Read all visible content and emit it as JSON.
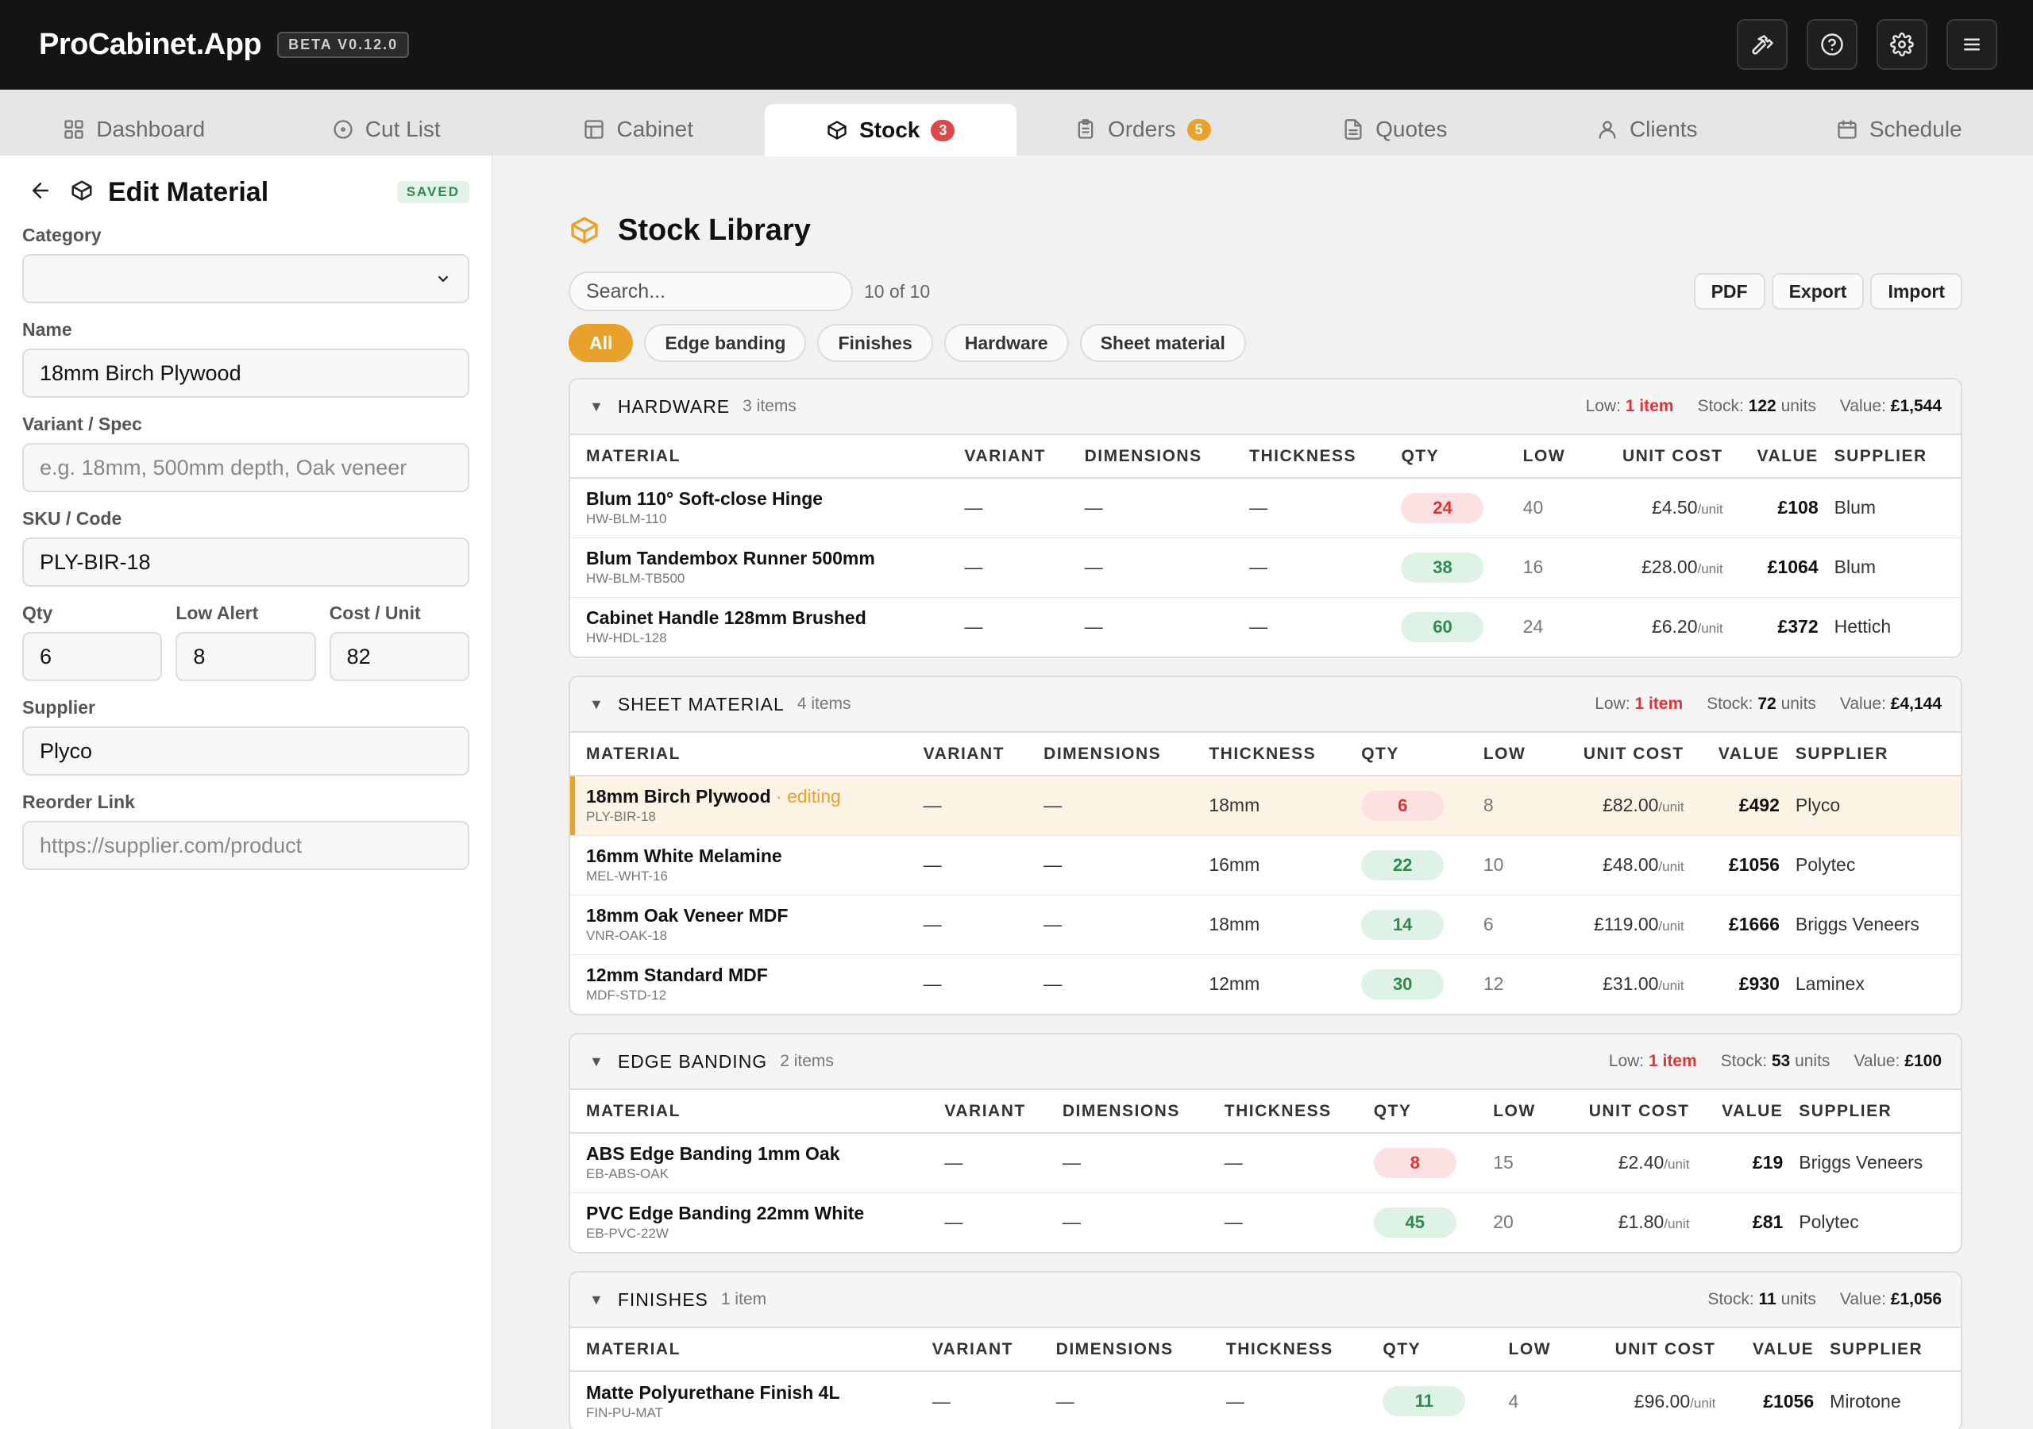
{
  "app": {
    "title": "ProCabinet.App",
    "version": "BETA V0.12.0"
  },
  "top_icons": [
    "hammer-icon",
    "help-icon",
    "settings-icon",
    "menu-icon"
  ],
  "tabs": [
    {
      "label": "Dashboard",
      "icon": "grid-icon"
    },
    {
      "label": "Cut List",
      "icon": "target-icon"
    },
    {
      "label": "Cabinet",
      "icon": "layout-icon"
    },
    {
      "label": "Stock",
      "icon": "box-icon",
      "badge": "3",
      "active": true
    },
    {
      "label": "Orders",
      "icon": "clipboard-icon",
      "badge": "5"
    },
    {
      "label": "Quotes",
      "icon": "document-icon"
    },
    {
      "label": "Clients",
      "icon": "user-icon"
    },
    {
      "label": "Schedule",
      "icon": "calendar-icon"
    }
  ],
  "editor": {
    "title": "Edit Material",
    "status": "SAVED",
    "category_label": "Category",
    "category_value": "",
    "name_label": "Name",
    "name_value": "18mm Birch Plywood",
    "variant_label": "Variant / Spec",
    "variant_placeholder": "e.g. 18mm, 500mm depth, Oak veneer",
    "sku_label": "SKU / Code",
    "sku_value": "PLY-BIR-18",
    "qty_label": "Qty",
    "qty_value": "6",
    "low_label": "Low Alert",
    "low_value": "8",
    "cost_label": "Cost / Unit",
    "cost_value": "82",
    "supplier_label": "Supplier",
    "supplier_value": "Plyco",
    "link_label": "Reorder Link",
    "link_placeholder": "https://supplier.com/product"
  },
  "library": {
    "title": "Stock Library",
    "search_placeholder": "Search...",
    "count": "10 of 10",
    "actions": [
      "PDF",
      "Export",
      "Import"
    ],
    "filters": [
      {
        "label": "All",
        "active": true
      },
      {
        "label": "Edge banding"
      },
      {
        "label": "Finishes"
      },
      {
        "label": "Hardware"
      },
      {
        "label": "Sheet material"
      }
    ],
    "columns": [
      "MATERIAL",
      "VARIANT",
      "DIMENSIONS",
      "THICKNESS",
      "QTY",
      "LOW",
      "UNIT COST",
      "VALUE",
      "SUPPLIER"
    ],
    "unit_suffix": "/unit",
    "editing_tag": "· editing",
    "groups": [
      {
        "name": "HARDWARE",
        "count": "3 items",
        "low_label": "Low:",
        "low_value": "1 item",
        "stock_label": "Stock:",
        "stock_value": "122",
        "stock_unit": "units",
        "value_label": "Value:",
        "value_value": "£1,544",
        "rows": [
          {
            "name": "Blum 110° Soft-close Hinge",
            "sku": "HW-BLM-110",
            "variant": "—",
            "dimensions": "—",
            "thickness": "—",
            "qty": "24",
            "qty_status": "bad",
            "low": "40",
            "unit_cost": "£4.50",
            "value": "£108",
            "supplier": "Blum"
          },
          {
            "name": "Blum Tandembox Runner 500mm",
            "sku": "HW-BLM-TB500",
            "variant": "—",
            "dimensions": "—",
            "thickness": "—",
            "qty": "38",
            "qty_status": "ok",
            "low": "16",
            "unit_cost": "£28.00",
            "value": "£1064",
            "supplier": "Blum"
          },
          {
            "name": "Cabinet Handle 128mm Brushed",
            "sku": "HW-HDL-128",
            "variant": "—",
            "dimensions": "—",
            "thickness": "—",
            "qty": "60",
            "qty_status": "ok",
            "low": "24",
            "unit_cost": "£6.20",
            "value": "£372",
            "supplier": "Hettich"
          }
        ]
      },
      {
        "name": "SHEET MATERIAL",
        "count": "4 items",
        "low_label": "Low:",
        "low_value": "1 item",
        "stock_label": "Stock:",
        "stock_value": "72",
        "stock_unit": "units",
        "value_label": "Value:",
        "value_value": "£4,144",
        "rows": [
          {
            "name": "18mm Birch Plywood",
            "sku": "PLY-BIR-18",
            "variant": "—",
            "dimensions": "—",
            "thickness": "18mm",
            "qty": "6",
            "qty_status": "bad",
            "low": "8",
            "unit_cost": "£82.00",
            "value": "£492",
            "supplier": "Plyco",
            "editing": true
          },
          {
            "name": "16mm White Melamine",
            "sku": "MEL-WHT-16",
            "variant": "—",
            "dimensions": "—",
            "thickness": "16mm",
            "qty": "22",
            "qty_status": "ok",
            "low": "10",
            "unit_cost": "£48.00",
            "value": "£1056",
            "supplier": "Polytec"
          },
          {
            "name": "18mm Oak Veneer MDF",
            "sku": "VNR-OAK-18",
            "variant": "—",
            "dimensions": "—",
            "thickness": "18mm",
            "qty": "14",
            "qty_status": "ok",
            "low": "6",
            "unit_cost": "£119.00",
            "value": "£1666",
            "supplier": "Briggs Veneers"
          },
          {
            "name": "12mm Standard MDF",
            "sku": "MDF-STD-12",
            "variant": "—",
            "dimensions": "—",
            "thickness": "12mm",
            "qty": "30",
            "qty_status": "ok",
            "low": "12",
            "unit_cost": "£31.00",
            "value": "£930",
            "supplier": "Laminex"
          }
        ]
      },
      {
        "name": "EDGE BANDING",
        "count": "2 items",
        "low_label": "Low:",
        "low_value": "1 item",
        "stock_label": "Stock:",
        "stock_value": "53",
        "stock_unit": "units",
        "value_label": "Value:",
        "value_value": "£100",
        "rows": [
          {
            "name": "ABS Edge Banding 1mm Oak",
            "sku": "EB-ABS-OAK",
            "variant": "—",
            "dimensions": "—",
            "thickness": "—",
            "qty": "8",
            "qty_status": "bad",
            "low": "15",
            "unit_cost": "£2.40",
            "value": "£19",
            "supplier": "Briggs Veneers"
          },
          {
            "name": "PVC Edge Banding 22mm White",
            "sku": "EB-PVC-22W",
            "variant": "—",
            "dimensions": "—",
            "thickness": "—",
            "qty": "45",
            "qty_status": "ok",
            "low": "20",
            "unit_cost": "£1.80",
            "value": "£81",
            "supplier": "Polytec"
          }
        ]
      },
      {
        "name": "FINISHES",
        "count": "1 item",
        "stock_label": "Stock:",
        "stock_value": "11",
        "stock_unit": "units",
        "value_label": "Value:",
        "value_value": "£1,056",
        "rows": [
          {
            "name": "Matte Polyurethane Finish 4L",
            "sku": "FIN-PU-MAT",
            "variant": "—",
            "dimensions": "—",
            "thickness": "—",
            "qty": "11",
            "qty_status": "ok",
            "low": "4",
            "unit_cost": "£96.00",
            "value": "£1056",
            "supplier": "Mirotone"
          }
        ]
      }
    ]
  },
  "colors": {
    "accent": "#e8a22c",
    "danger": "#d33333",
    "success": "#2f8a4e",
    "topbar": "#141414"
  }
}
